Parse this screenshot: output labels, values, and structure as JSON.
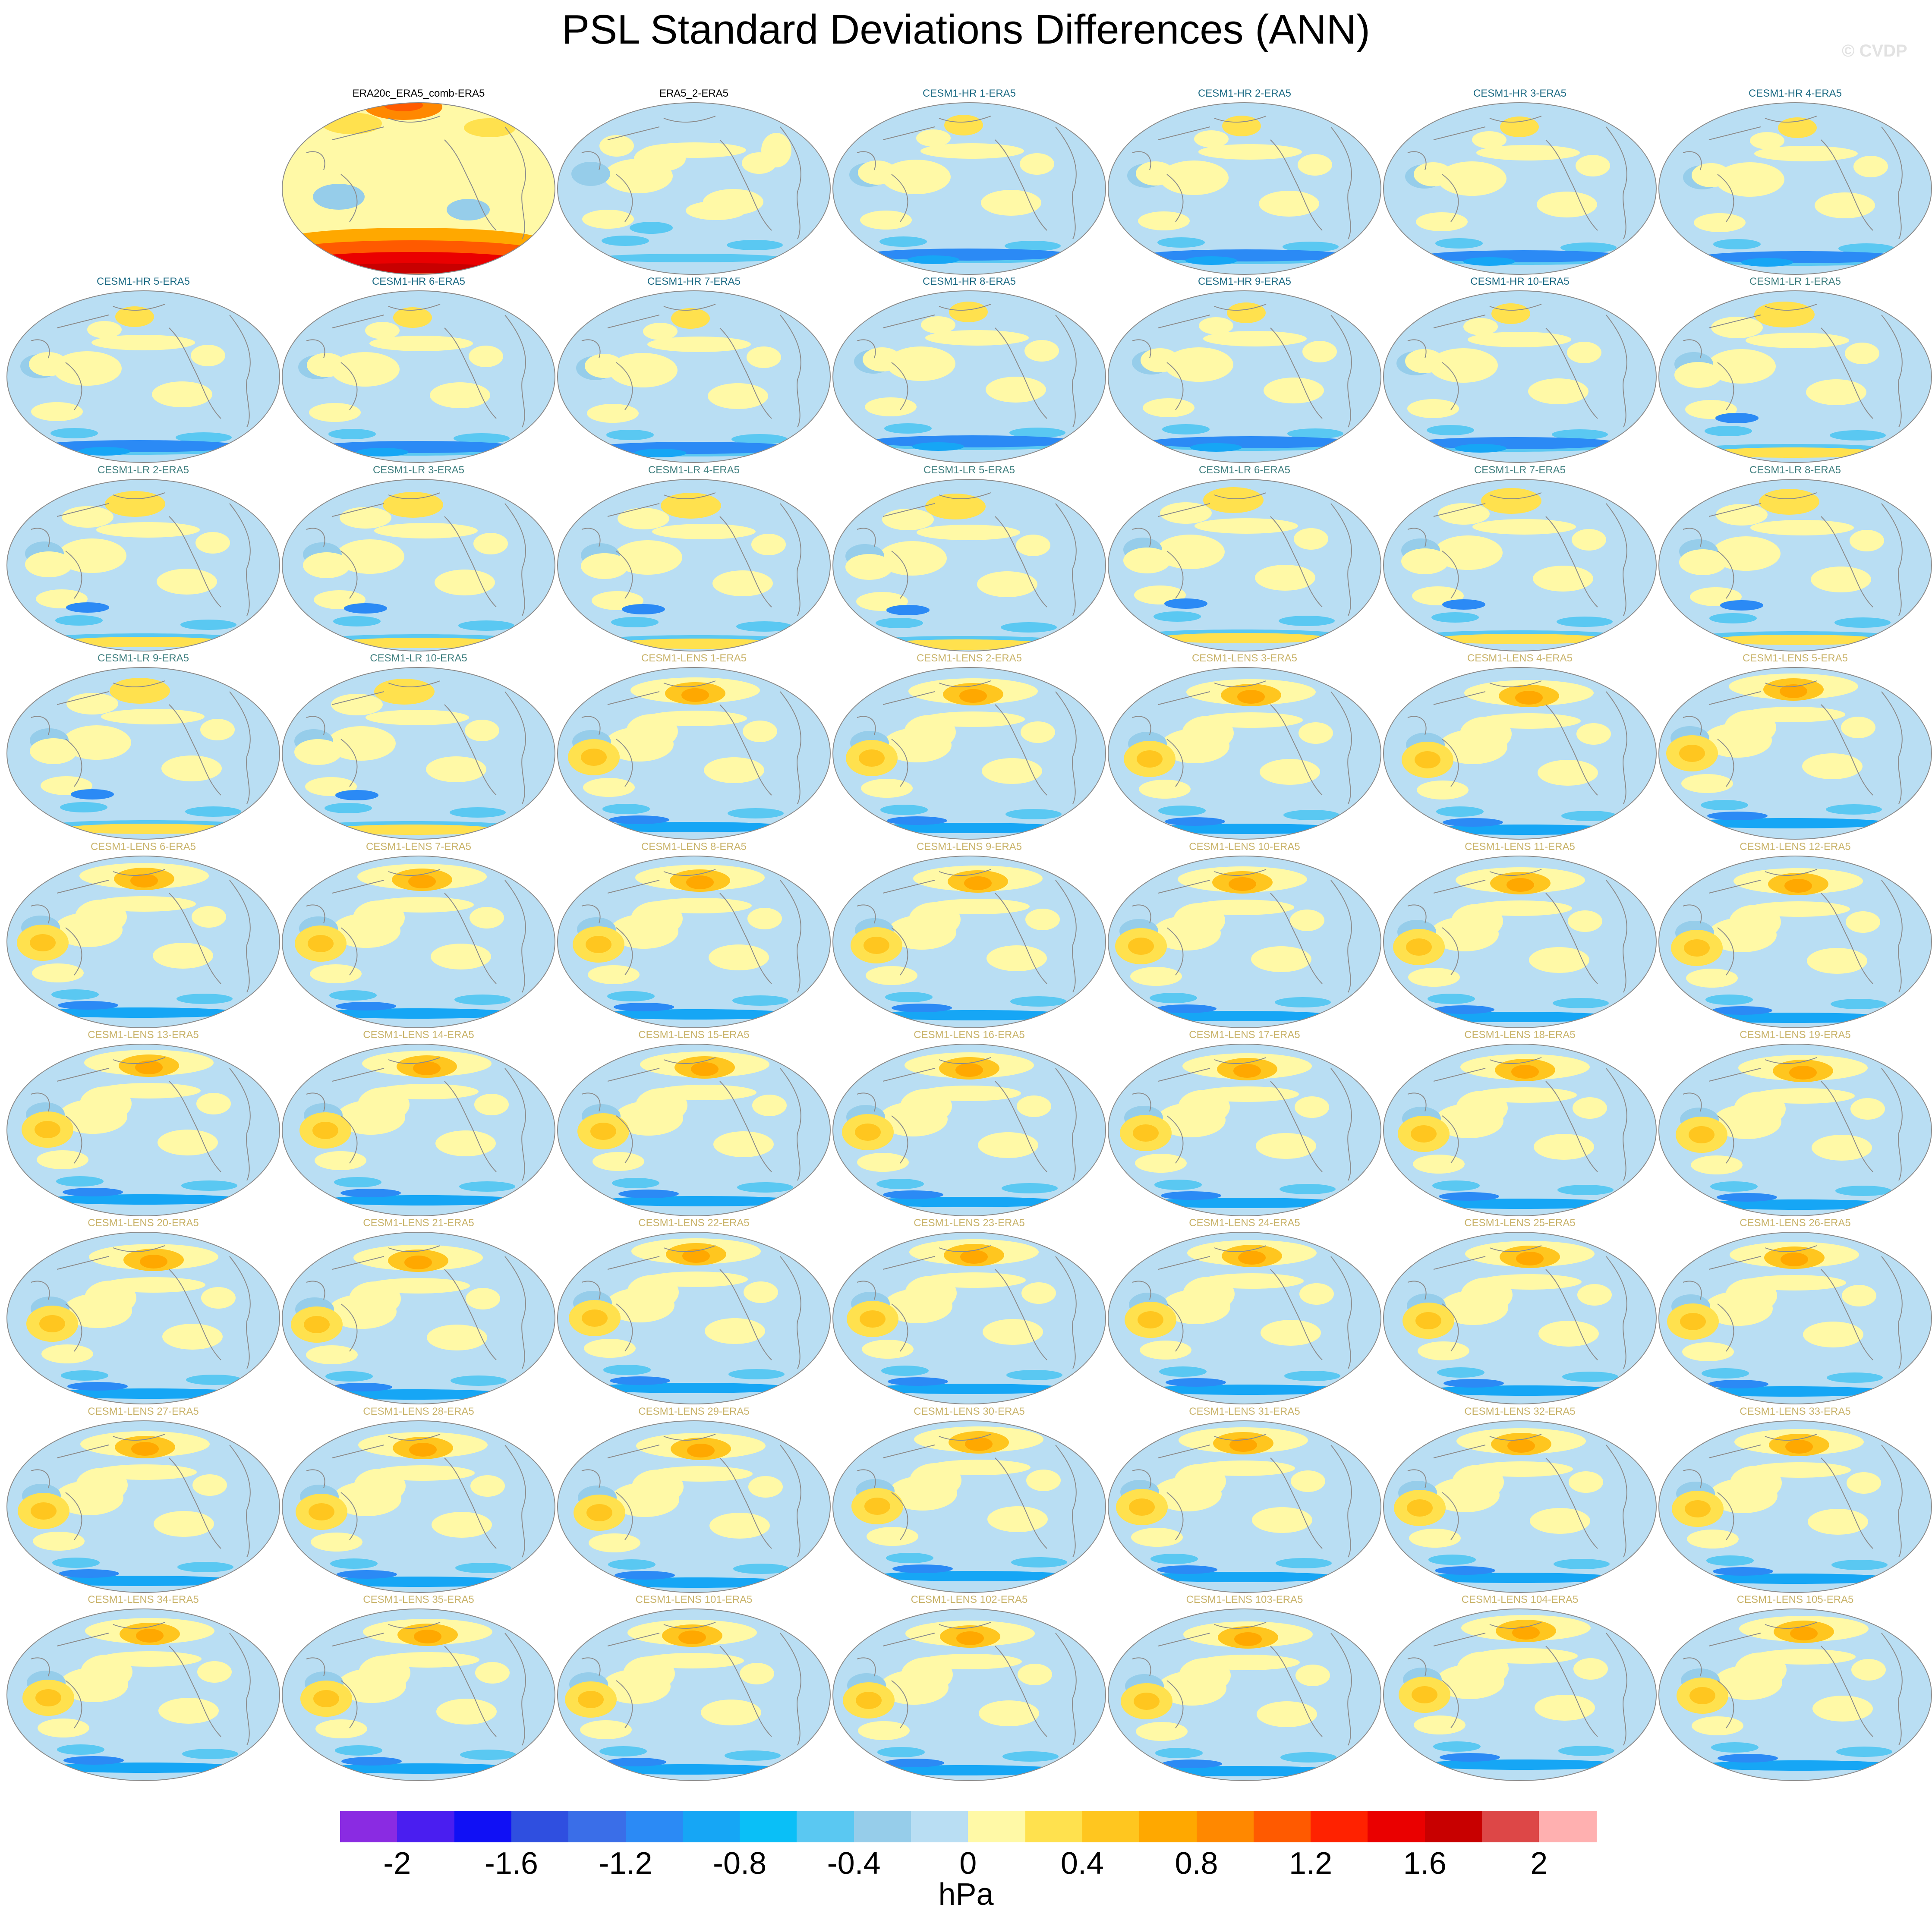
{
  "watermark": "© CVDP",
  "chart_data": {
    "type": "heatmap",
    "title": "PSL Standard Deviations Differences (ANN)",
    "projection": "global map, Robinson-style",
    "panel_grid": {
      "rows": 9,
      "columns": 7,
      "first_row_starts_at_column": 2
    },
    "colorbar": {
      "units": "hPa",
      "levels": [
        -2,
        -1.8,
        -1.6,
        -1.4,
        -1.2,
        -1,
        -0.8,
        -0.6,
        -0.4,
        -0.2,
        0,
        0.2,
        0.4,
        0.6,
        0.8,
        1,
        1.2,
        1.4,
        1.6,
        1.8,
        2
      ],
      "tick_labels": [
        "-2",
        "-1.6",
        "-1.2",
        "-0.8",
        "-0.4",
        "0",
        "0.4",
        "0.8",
        "1.2",
        "1.6",
        "2"
      ],
      "tick_values": [
        -2,
        -1.6,
        -1.2,
        -0.8,
        -0.4,
        0,
        0.4,
        0.8,
        1.2,
        1.6,
        2
      ],
      "colors": [
        "#8a2be2",
        "#4a1ef0",
        "#1010f5",
        "#2f4fe0",
        "#3a6ee8",
        "#2b8af5",
        "#16a6f5",
        "#0abff7",
        "#5ac8f2",
        "#96cdea",
        "#b9def3",
        "#fff9a6",
        "#ffe14e",
        "#ffc61f",
        "#ffa800",
        "#ff8800",
        "#ff5a00",
        "#ff2200",
        "#ea0000",
        "#c80000",
        "#dd4747",
        "#ffb0b0"
      ]
    },
    "panels": [
      {
        "label": "ERA20c_ERA5_comb-ERA5",
        "label_color": "#000000",
        "pattern": "era20c"
      },
      {
        "label": "ERA5_2-ERA5",
        "label_color": "#000000",
        "pattern": "era5"
      },
      {
        "label": "CESM1-HR 1-ERA5",
        "label_color": "#1d6b84",
        "pattern": "hr"
      },
      {
        "label": "CESM1-HR 2-ERA5",
        "label_color": "#1d6b84",
        "pattern": "hr"
      },
      {
        "label": "CESM1-HR 3-ERA5",
        "label_color": "#1d6b84",
        "pattern": "hr"
      },
      {
        "label": "CESM1-HR 4-ERA5",
        "label_color": "#1d6b84",
        "pattern": "hr"
      },
      {
        "label": "CESM1-HR 5-ERA5",
        "label_color": "#1d6b84",
        "pattern": "hr"
      },
      {
        "label": "CESM1-HR 6-ERA5",
        "label_color": "#1d6b84",
        "pattern": "hr"
      },
      {
        "label": "CESM1-HR 7-ERA5",
        "label_color": "#1d6b84",
        "pattern": "hr"
      },
      {
        "label": "CESM1-HR 8-ERA5",
        "label_color": "#1d6b84",
        "pattern": "hr"
      },
      {
        "label": "CESM1-HR 9-ERA5",
        "label_color": "#1d6b84",
        "pattern": "hr"
      },
      {
        "label": "CESM1-HR 10-ERA5",
        "label_color": "#1d6b84",
        "pattern": "hr"
      },
      {
        "label": "CESM1-LR 1-ERA5",
        "label_color": "#3f7f7f",
        "pattern": "lr"
      },
      {
        "label": "CESM1-LR 2-ERA5",
        "label_color": "#3f7f7f",
        "pattern": "lr"
      },
      {
        "label": "CESM1-LR 3-ERA5",
        "label_color": "#3f7f7f",
        "pattern": "lr"
      },
      {
        "label": "CESM1-LR 4-ERA5",
        "label_color": "#3f7f7f",
        "pattern": "lr"
      },
      {
        "label": "CESM1-LR 5-ERA5",
        "label_color": "#3f7f7f",
        "pattern": "lr"
      },
      {
        "label": "CESM1-LR 6-ERA5",
        "label_color": "#3f7f7f",
        "pattern": "lr"
      },
      {
        "label": "CESM1-LR 7-ERA5",
        "label_color": "#3f7f7f",
        "pattern": "lr"
      },
      {
        "label": "CESM1-LR 8-ERA5",
        "label_color": "#3f7f7f",
        "pattern": "lr"
      },
      {
        "label": "CESM1-LR 9-ERA5",
        "label_color": "#3f7f7f",
        "pattern": "lr"
      },
      {
        "label": "CESM1-LR 10-ERA5",
        "label_color": "#3f7f7f",
        "pattern": "lr"
      },
      {
        "label": "CESM1-LENS 1-ERA5",
        "label_color": "#c9b36a",
        "pattern": "lens"
      },
      {
        "label": "CESM1-LENS 2-ERA5",
        "label_color": "#c9b36a",
        "pattern": "lens"
      },
      {
        "label": "CESM1-LENS 3-ERA5",
        "label_color": "#c9b36a",
        "pattern": "lens"
      },
      {
        "label": "CESM1-LENS 4-ERA5",
        "label_color": "#c9b36a",
        "pattern": "lens"
      },
      {
        "label": "CESM1-LENS 5-ERA5",
        "label_color": "#c9b36a",
        "pattern": "lens"
      },
      {
        "label": "CESM1-LENS 6-ERA5",
        "label_color": "#c9b36a",
        "pattern": "lens"
      },
      {
        "label": "CESM1-LENS 7-ERA5",
        "label_color": "#c9b36a",
        "pattern": "lens"
      },
      {
        "label": "CESM1-LENS 8-ERA5",
        "label_color": "#c9b36a",
        "pattern": "lens"
      },
      {
        "label": "CESM1-LENS 9-ERA5",
        "label_color": "#c9b36a",
        "pattern": "lens"
      },
      {
        "label": "CESM1-LENS 10-ERA5",
        "label_color": "#c9b36a",
        "pattern": "lens"
      },
      {
        "label": "CESM1-LENS 11-ERA5",
        "label_color": "#c9b36a",
        "pattern": "lens"
      },
      {
        "label": "CESM1-LENS 12-ERA5",
        "label_color": "#c9b36a",
        "pattern": "lens"
      },
      {
        "label": "CESM1-LENS 13-ERA5",
        "label_color": "#c9b36a",
        "pattern": "lens"
      },
      {
        "label": "CESM1-LENS 14-ERA5",
        "label_color": "#c9b36a",
        "pattern": "lens"
      },
      {
        "label": "CESM1-LENS 15-ERA5",
        "label_color": "#c9b36a",
        "pattern": "lens"
      },
      {
        "label": "CESM1-LENS 16-ERA5",
        "label_color": "#c9b36a",
        "pattern": "lens"
      },
      {
        "label": "CESM1-LENS 17-ERA5",
        "label_color": "#c9b36a",
        "pattern": "lens"
      },
      {
        "label": "CESM1-LENS 18-ERA5",
        "label_color": "#c9b36a",
        "pattern": "lens"
      },
      {
        "label": "CESM1-LENS 19-ERA5",
        "label_color": "#c9b36a",
        "pattern": "lens"
      },
      {
        "label": "CESM1-LENS 20-ERA5",
        "label_color": "#c9b36a",
        "pattern": "lens"
      },
      {
        "label": "CESM1-LENS 21-ERA5",
        "label_color": "#c9b36a",
        "pattern": "lens"
      },
      {
        "label": "CESM1-LENS 22-ERA5",
        "label_color": "#c9b36a",
        "pattern": "lens"
      },
      {
        "label": "CESM1-LENS 23-ERA5",
        "label_color": "#c9b36a",
        "pattern": "lens"
      },
      {
        "label": "CESM1-LENS 24-ERA5",
        "label_color": "#c9b36a",
        "pattern": "lens"
      },
      {
        "label": "CESM1-LENS 25-ERA5",
        "label_color": "#c9b36a",
        "pattern": "lens"
      },
      {
        "label": "CESM1-LENS 26-ERA5",
        "label_color": "#c9b36a",
        "pattern": "lens"
      },
      {
        "label": "CESM1-LENS 27-ERA5",
        "label_color": "#c9b36a",
        "pattern": "lens"
      },
      {
        "label": "CESM1-LENS 28-ERA5",
        "label_color": "#c9b36a",
        "pattern": "lens"
      },
      {
        "label": "CESM1-LENS 29-ERA5",
        "label_color": "#c9b36a",
        "pattern": "lens"
      },
      {
        "label": "CESM1-LENS 30-ERA5",
        "label_color": "#c9b36a",
        "pattern": "lens"
      },
      {
        "label": "CESM1-LENS 31-ERA5",
        "label_color": "#c9b36a",
        "pattern": "lens"
      },
      {
        "label": "CESM1-LENS 32-ERA5",
        "label_color": "#c9b36a",
        "pattern": "lens"
      },
      {
        "label": "CESM1-LENS 33-ERA5",
        "label_color": "#c9b36a",
        "pattern": "lens"
      },
      {
        "label": "CESM1-LENS 34-ERA5",
        "label_color": "#c9b36a",
        "pattern": "lens"
      },
      {
        "label": "CESM1-LENS 35-ERA5",
        "label_color": "#c9b36a",
        "pattern": "lens"
      },
      {
        "label": "CESM1-LENS 101-ERA5",
        "label_color": "#c9b36a",
        "pattern": "lens"
      },
      {
        "label": "CESM1-LENS 102-ERA5",
        "label_color": "#c9b36a",
        "pattern": "lens"
      },
      {
        "label": "CESM1-LENS 103-ERA5",
        "label_color": "#c9b36a",
        "pattern": "lens"
      },
      {
        "label": "CESM1-LENS 104-ERA5",
        "label_color": "#c9b36a",
        "pattern": "lens"
      },
      {
        "label": "CESM1-LENS 105-ERA5",
        "label_color": "#c9b36a",
        "pattern": "lens"
      }
    ]
  }
}
